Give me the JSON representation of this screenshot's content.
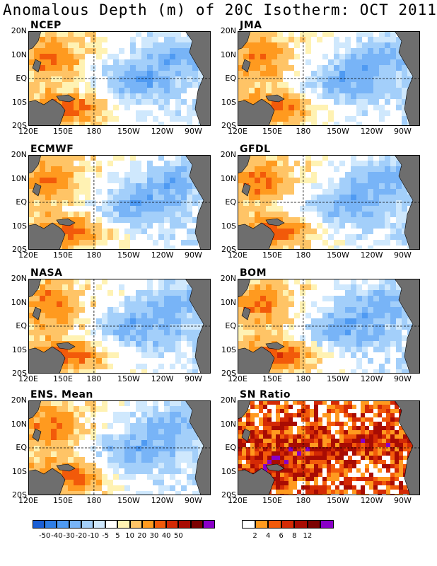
{
  "title": "Anomalous Depth (m) of 20C Isotherm: OCT 2011",
  "lat_labels": [
    "20N",
    "10N",
    "EQ",
    "10S",
    "20S"
  ],
  "lon_labels": [
    "120E",
    "150E",
    "180",
    "150W",
    "120W",
    "90W"
  ],
  "panels": [
    {
      "label": "NCEP",
      "kind": "anomaly",
      "seed": 11
    },
    {
      "label": "JMA",
      "kind": "anomaly",
      "seed": 23
    },
    {
      "label": "ECMWF",
      "kind": "anomaly",
      "seed": 37
    },
    {
      "label": "GFDL",
      "kind": "anomaly",
      "seed": 41
    },
    {
      "label": "NASA",
      "kind": "anomaly",
      "seed": 53
    },
    {
      "label": "BOM",
      "kind": "anomaly",
      "seed": 67
    },
    {
      "label": "ENS. Mean",
      "kind": "anomaly",
      "seed": 79
    },
    {
      "label": "SN Ratio",
      "kind": "snr",
      "seed": 97
    }
  ],
  "anomaly_colorbar": {
    "colors": [
      "#1a5fd6",
      "#2f7ee6",
      "#4f9af2",
      "#78b4f7",
      "#a3cffa",
      "#cfe8fd",
      "#ffffff",
      "#fff2b3",
      "#ffc466",
      "#ff9a1f",
      "#f25a0a",
      "#d42a05",
      "#a80c03",
      "#7c0202",
      "#8a00c8"
    ],
    "ticks": [
      "-50",
      "-40",
      "-30",
      "-20",
      "-10",
      "-5",
      "5",
      "10",
      "20",
      "30",
      "40",
      "50"
    ]
  },
  "snr_colorbar": {
    "colors": [
      "#ffffff",
      "#ff9a1f",
      "#f25a0a",
      "#d42a05",
      "#a80c03",
      "#7c0202",
      "#8a00c8"
    ],
    "ticks": [
      "2",
      "4",
      "6",
      "8",
      "12"
    ]
  }
}
